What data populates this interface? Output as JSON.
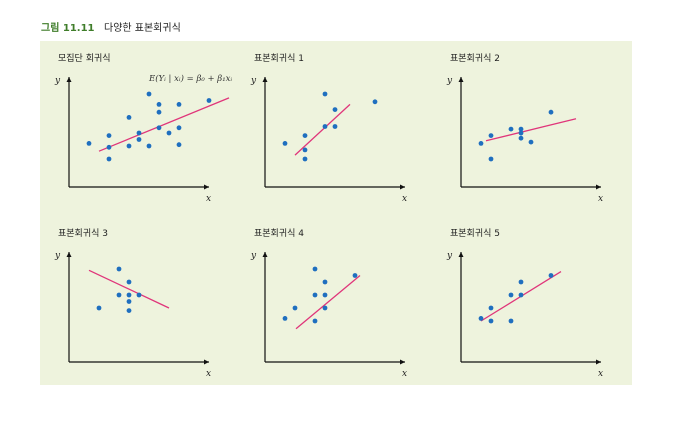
{
  "figure": {
    "number": "그림 11.11",
    "caption": "다양한 표본회귀식",
    "equation": "E(Yᵢ | xᵢ) = β₀ + β₁xᵢ"
  },
  "colors": {
    "panel_bg": "#eef3dd",
    "point": "#1f6fbf",
    "line": "#e0357a",
    "axis": "#111111",
    "title_green": "#3f7d2a"
  },
  "plots": [
    {
      "title": "모집단 회귀식",
      "x_label": "x",
      "y_label": "y",
      "points": [
        [
          1,
          3.2
        ],
        [
          3,
          2.9
        ],
        [
          3,
          3.8
        ],
        [
          5,
          3
        ],
        [
          5,
          5.2
        ],
        [
          6,
          4
        ],
        [
          6,
          3.5
        ],
        [
          7,
          3
        ],
        [
          7,
          7
        ],
        [
          8,
          4.4
        ],
        [
          8,
          5.6
        ],
        [
          8,
          6.2
        ],
        [
          10,
          4.4
        ],
        [
          10,
          3.1
        ],
        [
          10,
          6.2
        ],
        [
          9,
          4
        ],
        [
          13,
          6.5
        ],
        [
          3,
          2
        ]
      ],
      "line": [
        [
          2,
          2.6
        ],
        [
          15,
          6.7
        ]
      ]
    },
    {
      "title": "표본회귀식 1",
      "x_label": "x",
      "y_label": "y",
      "points": [
        [
          1,
          3.2
        ],
        [
          3,
          3.8
        ],
        [
          3,
          2
        ],
        [
          3,
          2.7
        ],
        [
          5,
          4.5
        ],
        [
          5,
          7
        ],
        [
          6,
          4.5
        ],
        [
          6,
          5.8
        ],
        [
          10,
          6.4
        ]
      ],
      "line": [
        [
          2,
          2.3
        ],
        [
          7.5,
          6.2
        ]
      ]
    },
    {
      "title": "표본회귀식 2",
      "x_label": "x",
      "y_label": "y",
      "points": [
        [
          1,
          3.2
        ],
        [
          2,
          2
        ],
        [
          2,
          3.8
        ],
        [
          4,
          4.3
        ],
        [
          5,
          4
        ],
        [
          5,
          3.6
        ],
        [
          5,
          4.3
        ],
        [
          6,
          3.3
        ],
        [
          8,
          5.6
        ]
      ],
      "line": [
        [
          1.5,
          3.4
        ],
        [
          10.5,
          5.1
        ]
      ]
    },
    {
      "title": "표본회귀식 3",
      "x_label": "x",
      "y_label": "y",
      "points": [
        [
          2,
          4
        ],
        [
          4,
          7
        ],
        [
          4,
          5
        ],
        [
          5,
          4.5
        ],
        [
          5,
          3.8
        ],
        [
          5,
          6
        ],
        [
          5,
          5
        ],
        [
          6,
          5
        ]
      ],
      "line": [
        [
          1,
          6.9
        ],
        [
          9,
          4
        ]
      ]
    },
    {
      "title": "표본회귀식 4",
      "x_label": "x",
      "y_label": "y",
      "points": [
        [
          1,
          3.2
        ],
        [
          2,
          4
        ],
        [
          4,
          3
        ],
        [
          4,
          5
        ],
        [
          4,
          7
        ],
        [
          5,
          4
        ],
        [
          5,
          5
        ],
        [
          5,
          6
        ],
        [
          8,
          6.5
        ]
      ],
      "line": [
        [
          2.1,
          2.4
        ],
        [
          8.5,
          6.5
        ]
      ]
    },
    {
      "title": "표본회귀식 5",
      "x_label": "x",
      "y_label": "y",
      "points": [
        [
          1,
          3.2
        ],
        [
          2,
          3
        ],
        [
          2,
          4
        ],
        [
          4,
          3
        ],
        [
          4,
          5
        ],
        [
          5,
          5
        ],
        [
          5,
          6
        ],
        [
          8,
          6.5
        ]
      ],
      "line": [
        [
          1,
          3
        ],
        [
          9,
          6.8
        ]
      ]
    }
  ]
}
